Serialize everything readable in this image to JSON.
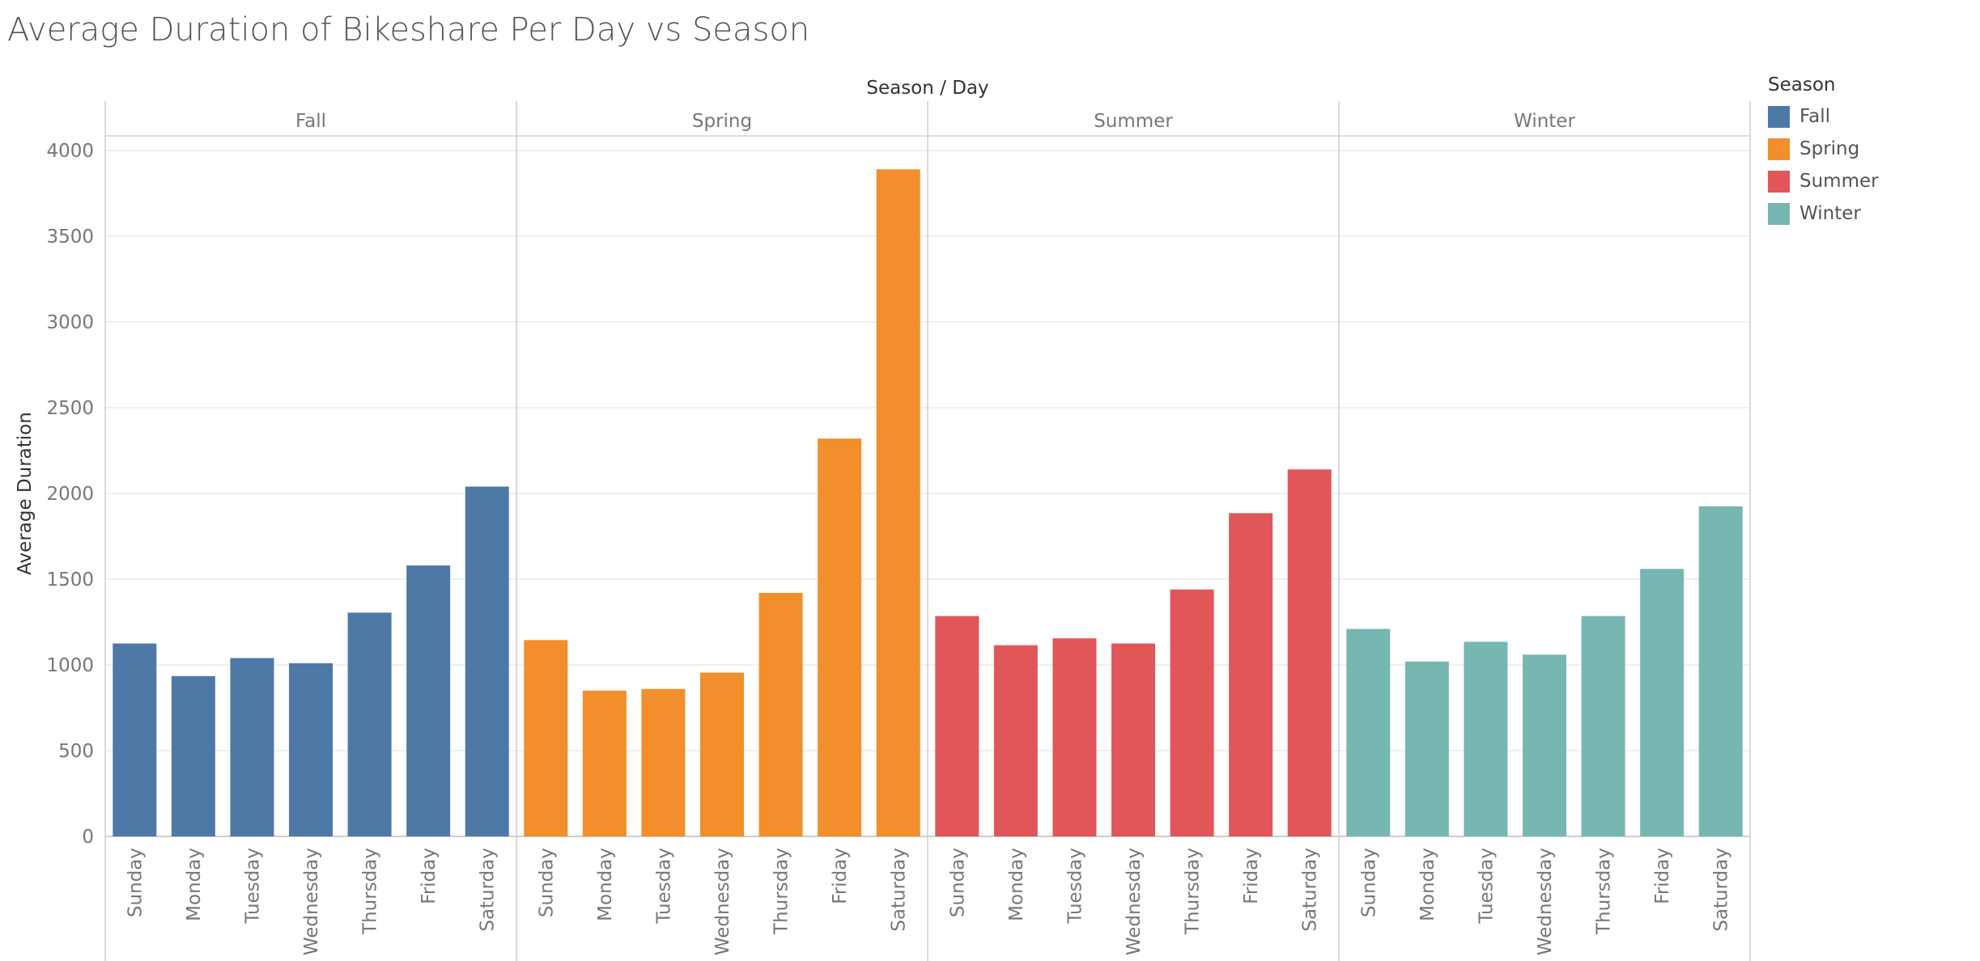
{
  "chart_data": {
    "type": "bar",
    "title": "Average Duration of Bikeshare Per Day vs Season",
    "column_header": "Season / Day",
    "ylabel": "Average Duration",
    "ylim": [
      0,
      4000
    ],
    "yticks": [
      0,
      500,
      1000,
      1500,
      2000,
      2500,
      3000,
      3500,
      4000
    ],
    "grid": true,
    "legend": {
      "title": "Season",
      "placement": "right",
      "items": [
        {
          "label": "Fall",
          "color": "#4E79A7"
        },
        {
          "label": "Spring",
          "color": "#F28E2B"
        },
        {
          "label": "Summer",
          "color": "#E15759"
        },
        {
          "label": "Winter",
          "color": "#76B7B2"
        }
      ]
    },
    "categories": [
      "Sunday",
      "Monday",
      "Tuesday",
      "Wednesday",
      "Thursday",
      "Friday",
      "Saturday"
    ],
    "series": [
      {
        "name": "Fall",
        "color": "#4E79A7",
        "values": [
          1125,
          935,
          1040,
          1010,
          1305,
          1580,
          2040
        ]
      },
      {
        "name": "Spring",
        "color": "#F28E2B",
        "values": [
          1145,
          850,
          860,
          955,
          1420,
          2320,
          3890
        ]
      },
      {
        "name": "Summer",
        "color": "#E15759",
        "values": [
          1285,
          1115,
          1155,
          1125,
          1440,
          1885,
          2140
        ]
      },
      {
        "name": "Winter",
        "color": "#76B7B2",
        "values": [
          1210,
          1020,
          1135,
          1060,
          1285,
          1560,
          1925
        ]
      }
    ]
  }
}
